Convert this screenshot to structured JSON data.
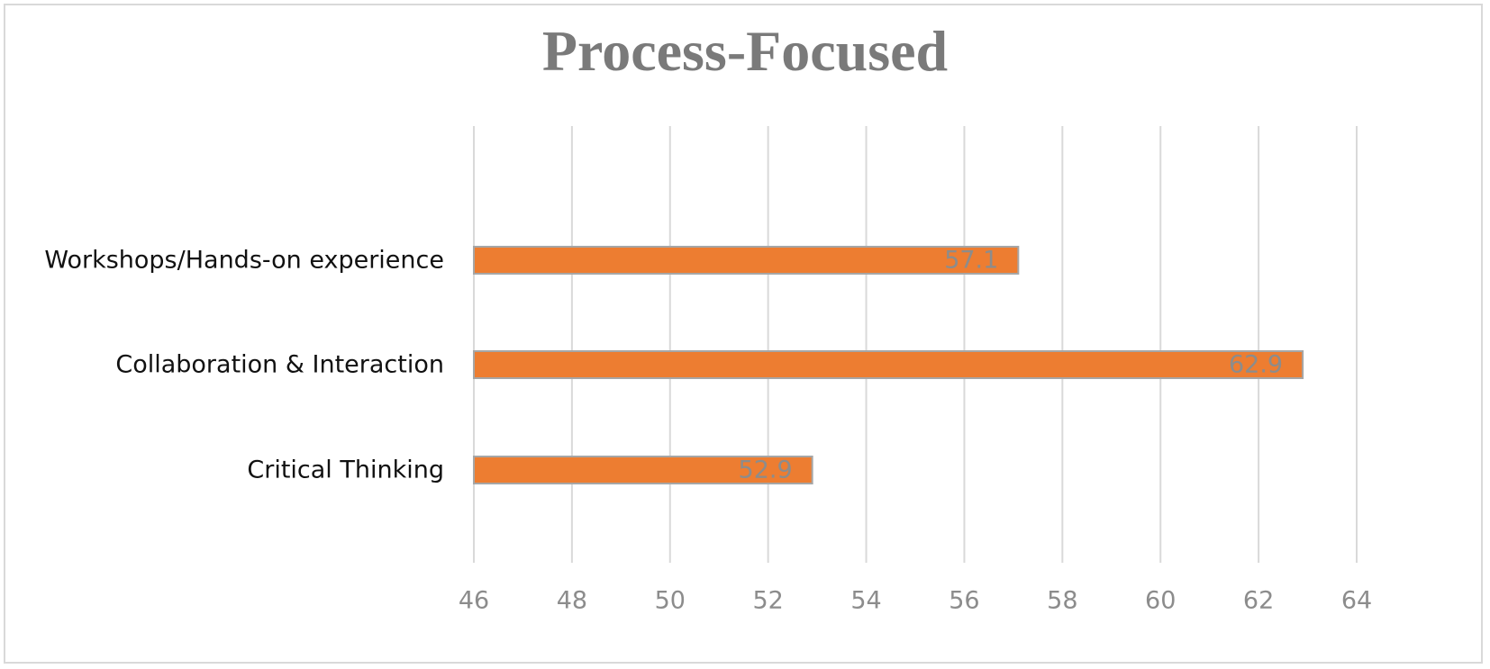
{
  "chart_data": {
    "type": "bar",
    "orientation": "horizontal",
    "title": "Process-Focused",
    "categories": [
      "Workshops/Hands-on experience",
      "Collaboration & Interaction",
      "Critical Thinking"
    ],
    "values": [
      57.1,
      62.9,
      52.9
    ],
    "data_labels": [
      "57.1",
      "62.9",
      "52.9"
    ],
    "xlim": [
      46,
      64
    ],
    "x_ticks": [
      46,
      48,
      50,
      52,
      54,
      56,
      58,
      60,
      62,
      64
    ],
    "grid": "vertical",
    "bar_color": "#ed7d31",
    "bar_border_color": "#a6a6a6",
    "grid_color": "#d9d9d9",
    "tick_label_color": "#8c8c8c",
    "title_color": "#7a7a7a"
  }
}
